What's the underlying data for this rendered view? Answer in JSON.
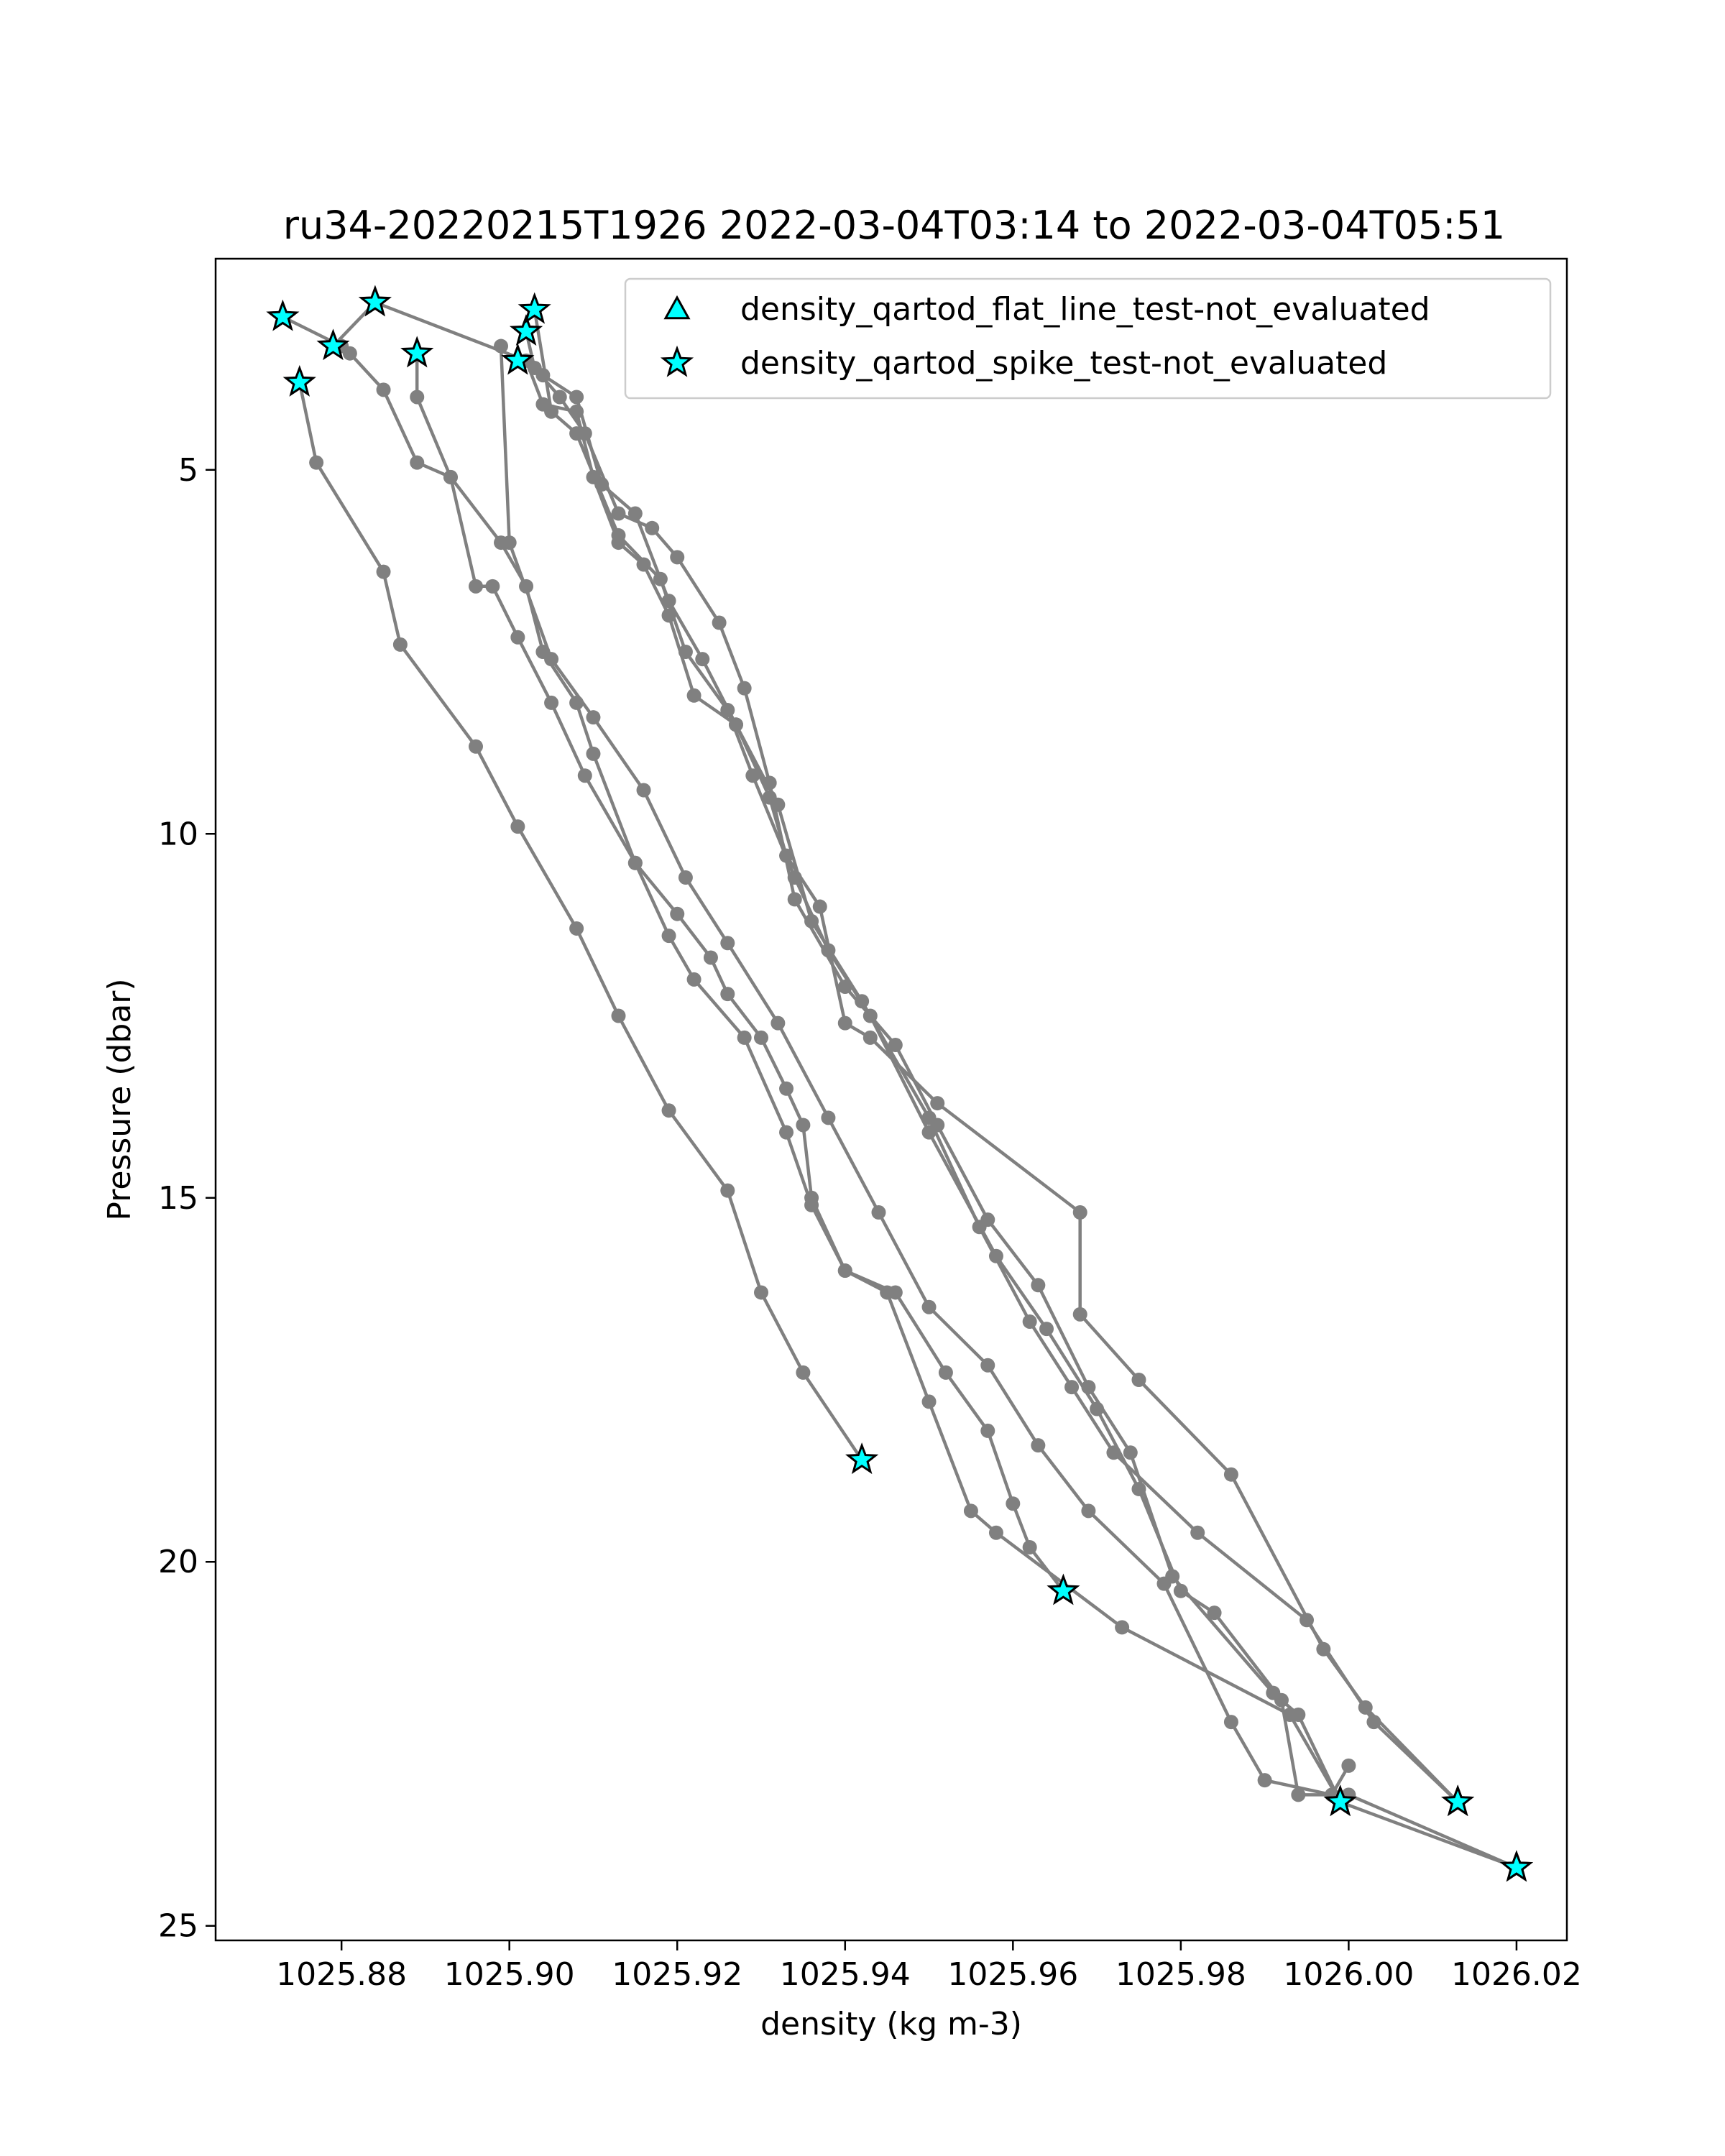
{
  "chart_data": {
    "type": "line",
    "title": "ru34-20220215T1926 2022-03-04T03:14 to 2022-03-04T05:51",
    "xlabel": "density (kg m-3)",
    "ylabel": "Pressure (dbar)",
    "xlim": [
      1025.865,
      1026.026
    ],
    "ylim": [
      25.2,
      2.1
    ],
    "y_inverted": true,
    "grid": false,
    "xticks": [
      1025.88,
      1025.9,
      1025.92,
      1025.94,
      1025.96,
      1025.98,
      1026.0,
      1026.02
    ],
    "xtick_labels": [
      "1025.88",
      "1025.90",
      "1025.92",
      "1025.94",
      "1025.96",
      "1025.98",
      "1026.00",
      "1026.02"
    ],
    "yticks": [
      5,
      10,
      15,
      20,
      25
    ],
    "ytick_labels": [
      "5",
      "10",
      "15",
      "20",
      "25"
    ],
    "colors": {
      "profile_line": "#808080",
      "marker_fill": "#00ffff",
      "marker_edge": "#000000"
    },
    "legend": {
      "placement": "upper right",
      "entries": [
        {
          "label": "density_qartod_flat_line_test-not_evaluated",
          "marker": "triangle"
        },
        {
          "label": "density_qartod_spike_test-not_evaluated",
          "marker": "star"
        }
      ]
    },
    "series": [
      {
        "points": [
          [
            1025.873,
            2.9
          ],
          [
            1025.88,
            3.3
          ],
          [
            1025.881,
            3.4
          ],
          [
            1025.885,
            3.9
          ],
          [
            1025.889,
            4.9
          ],
          [
            1025.893,
            5.1
          ],
          [
            1025.896,
            6.6
          ],
          [
            1025.898,
            6.6
          ],
          [
            1025.901,
            7.3
          ],
          [
            1025.905,
            8.2
          ],
          [
            1025.909,
            9.2
          ],
          [
            1025.915,
            10.4
          ],
          [
            1025.92,
            11.1
          ],
          [
            1025.924,
            11.7
          ],
          [
            1025.926,
            12.2
          ],
          [
            1025.93,
            12.8
          ],
          [
            1025.933,
            13.5
          ],
          [
            1025.935,
            14.0
          ],
          [
            1025.936,
            15.0
          ],
          [
            1025.94,
            16.0
          ],
          [
            1025.946,
            16.3
          ],
          [
            1025.952,
            17.4
          ],
          [
            1025.957,
            18.2
          ],
          [
            1025.96,
            19.2
          ],
          [
            1025.962,
            19.8
          ],
          [
            1025.966,
            20.4
          ]
        ],
        "flag_points": [
          [
            1025.873,
            2.9
          ],
          [
            1025.966,
            20.4
          ]
        ]
      },
      {
        "points": [
          [
            1025.879,
            3.3
          ],
          [
            1025.884,
            2.7
          ],
          [
            1025.902,
            3.5
          ],
          [
            1025.904,
            4.1
          ],
          [
            1025.908,
            4.2
          ],
          [
            1025.91,
            5.1
          ],
          [
            1025.913,
            6.0
          ],
          [
            1025.916,
            6.3
          ],
          [
            1025.919,
            7.0
          ],
          [
            1025.922,
            8.1
          ],
          [
            1025.927,
            8.5
          ],
          [
            1025.931,
            9.5
          ],
          [
            1025.933,
            10.3
          ],
          [
            1025.937,
            11.0
          ],
          [
            1025.94,
            12.6
          ],
          [
            1025.943,
            12.8
          ],
          [
            1025.951,
            13.7
          ],
          [
            1025.968,
            15.2
          ],
          [
            1025.968,
            16.6
          ],
          [
            1025.975,
            17.5
          ],
          [
            1025.986,
            18.8
          ],
          [
            1025.997,
            21.2
          ],
          [
            1026.002,
            22.0
          ],
          [
            1026.013,
            23.3
          ]
        ],
        "flag_points": [
          [
            1025.879,
            3.3
          ],
          [
            1025.884,
            2.7
          ],
          [
            1026.013,
            23.3
          ]
        ]
      },
      {
        "points": [
          [
            1025.875,
            3.8
          ],
          [
            1025.877,
            4.9
          ],
          [
            1025.885,
            6.4
          ],
          [
            1025.887,
            7.4
          ],
          [
            1025.896,
            8.8
          ],
          [
            1025.901,
            9.9
          ],
          [
            1025.908,
            11.3
          ],
          [
            1025.913,
            12.5
          ],
          [
            1025.919,
            13.8
          ],
          [
            1025.926,
            14.9
          ],
          [
            1025.93,
            16.3
          ],
          [
            1025.935,
            17.4
          ],
          [
            1025.942,
            18.6
          ]
        ],
        "flag_points": [
          [
            1025.875,
            3.8
          ],
          [
            1025.942,
            18.6
          ]
        ]
      },
      {
        "points": [
          [
            1025.889,
            3.4
          ],
          [
            1025.889,
            4.0
          ],
          [
            1025.893,
            5.1
          ],
          [
            1025.899,
            6.0
          ],
          [
            1025.902,
            6.6
          ],
          [
            1025.904,
            7.5
          ],
          [
            1025.908,
            8.2
          ],
          [
            1025.91,
            8.9
          ],
          [
            1025.915,
            10.4
          ],
          [
            1025.919,
            11.4
          ],
          [
            1025.922,
            12.0
          ],
          [
            1025.928,
            12.8
          ],
          [
            1025.933,
            14.1
          ],
          [
            1025.936,
            15.1
          ],
          [
            1025.94,
            16.0
          ],
          [
            1025.945,
            16.3
          ],
          [
            1025.95,
            17.8
          ],
          [
            1025.955,
            19.3
          ],
          [
            1025.958,
            19.6
          ],
          [
            1025.973,
            20.9
          ],
          [
            1025.993,
            22.1
          ],
          [
            1025.999,
            23.3
          ],
          [
            1026.02,
            24.2
          ]
        ],
        "flag_points": [
          [
            1025.889,
            3.4
          ],
          [
            1025.999,
            23.3
          ],
          [
            1026.02,
            24.2
          ]
        ]
      },
      {
        "points": [
          [
            1025.902,
            3.1
          ],
          [
            1025.903,
            3.6
          ],
          [
            1025.906,
            4.0
          ],
          [
            1025.909,
            4.5
          ],
          [
            1025.913,
            5.6
          ],
          [
            1025.917,
            5.8
          ],
          [
            1025.92,
            6.2
          ],
          [
            1025.925,
            7.1
          ],
          [
            1025.928,
            8.0
          ],
          [
            1025.931,
            9.3
          ],
          [
            1025.934,
            10.9
          ],
          [
            1025.94,
            12.1
          ],
          [
            1025.946,
            12.9
          ],
          [
            1025.951,
            14.0
          ],
          [
            1025.957,
            15.3
          ],
          [
            1025.963,
            16.2
          ],
          [
            1025.969,
            17.6
          ],
          [
            1025.974,
            18.5
          ],
          [
            1025.979,
            20.2
          ],
          [
            1025.991,
            21.8
          ],
          [
            1025.994,
            22.1
          ],
          [
            1025.999,
            23.3
          ]
        ],
        "flag_points": [
          [
            1025.902,
            3.1
          ],
          [
            1025.999,
            23.3
          ]
        ]
      },
      {
        "points": [
          [
            1025.903,
            2.8
          ],
          [
            1025.905,
            4.2
          ],
          [
            1025.908,
            4.5
          ],
          [
            1025.913,
            5.9
          ],
          [
            1025.918,
            6.5
          ],
          [
            1025.921,
            7.5
          ],
          [
            1025.926,
            8.3
          ],
          [
            1025.929,
            9.2
          ],
          [
            1025.934,
            10.6
          ],
          [
            1025.938,
            11.6
          ],
          [
            1025.943,
            12.5
          ],
          [
            1025.95,
            14.1
          ],
          [
            1025.958,
            15.8
          ],
          [
            1025.964,
            16.8
          ],
          [
            1025.97,
            17.9
          ],
          [
            1025.975,
            19.0
          ],
          [
            1025.98,
            20.4
          ],
          [
            1025.984,
            20.7
          ],
          [
            1025.992,
            21.9
          ],
          [
            1025.994,
            23.2
          ],
          [
            1026.0,
            23.2
          ],
          [
            1026.02,
            24.2
          ]
        ],
        "flag_points": [
          [
            1025.903,
            2.8
          ],
          [
            1026.02,
            24.2
          ]
        ]
      },
      {
        "points": [
          [
            1025.901,
            3.5
          ],
          [
            1025.904,
            3.7
          ],
          [
            1025.908,
            4.0
          ],
          [
            1025.911,
            5.2
          ],
          [
            1025.915,
            5.6
          ],
          [
            1025.919,
            6.8
          ],
          [
            1025.923,
            7.6
          ],
          [
            1025.927,
            8.5
          ],
          [
            1025.932,
            9.6
          ],
          [
            1025.936,
            11.2
          ],
          [
            1025.942,
            12.3
          ],
          [
            1025.95,
            13.9
          ],
          [
            1025.956,
            15.4
          ],
          [
            1025.962,
            16.7
          ],
          [
            1025.967,
            17.6
          ],
          [
            1025.972,
            18.5
          ],
          [
            1025.982,
            19.6
          ],
          [
            1025.995,
            20.8
          ],
          [
            1026.003,
            22.2
          ],
          [
            1026.013,
            23.3
          ]
        ],
        "flag_points": [
          [
            1025.901,
            3.5
          ],
          [
            1026.013,
            23.3
          ]
        ]
      },
      {
        "points": [
          [
            1025.899,
            3.3
          ],
          [
            1025.9,
            6.0
          ],
          [
            1025.905,
            7.6
          ],
          [
            1025.91,
            8.4
          ],
          [
            1025.916,
            9.4
          ],
          [
            1025.921,
            10.6
          ],
          [
            1025.926,
            11.5
          ],
          [
            1025.932,
            12.6
          ],
          [
            1025.938,
            13.9
          ],
          [
            1025.944,
            15.2
          ],
          [
            1025.95,
            16.5
          ],
          [
            1025.957,
            17.3
          ],
          [
            1025.963,
            18.4
          ],
          [
            1025.969,
            19.3
          ],
          [
            1025.978,
            20.3
          ],
          [
            1025.986,
            22.2
          ],
          [
            1025.99,
            23.0
          ],
          [
            1025.998,
            23.2
          ],
          [
            1026.0,
            22.8
          ]
        ],
        "flag_points": []
      }
    ]
  }
}
